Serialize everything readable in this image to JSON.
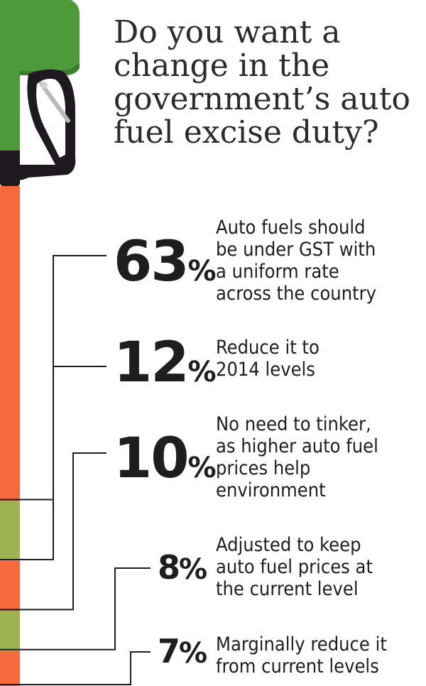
{
  "chart_data": {
    "type": "bar",
    "title_lines": [
      "Do you want a",
      "change in the",
      "government’s auto",
      "fuel excise duty?"
    ],
    "categories": [
      "Auto fuels should be under GST with a uniform rate across the country",
      "Reduce it to 2014 levels",
      "No need to tinker, as higher auto fuel prices help environment",
      "Adjusted to keep auto fuel prices at the current level",
      "Marginally reduce it from current levels"
    ],
    "values": [
      63,
      12,
      10,
      8,
      7
    ],
    "unit": "%",
    "items": [
      {
        "value": 63,
        "value_text": "63",
        "unit": "%",
        "label_lines": [
          "Auto fuels should",
          "be under GST with",
          "a uniform rate",
          "across the country"
        ],
        "color": "#f46a3c"
      },
      {
        "value": 12,
        "value_text": "12",
        "unit": "%",
        "label_lines": [
          "Reduce it to",
          "2014 levels"
        ],
        "color": "#9fb252"
      },
      {
        "value": 10,
        "value_text": "10",
        "unit": "%",
        "label_lines": [
          "No need to tinker,",
          "as higher auto fuel",
          "prices help",
          "environment"
        ],
        "color": "#f46a3c"
      },
      {
        "value": 8,
        "value_text": "8",
        "unit": "%",
        "label_lines": [
          "Adjusted to keep",
          "auto fuel prices at",
          "the current level"
        ],
        "color": "#9fb252"
      },
      {
        "value": 7,
        "value_text": "7",
        "unit": "%",
        "label_lines": [
          "Marginally reduce it",
          "from current levels"
        ],
        "color": "#f46a3c"
      }
    ],
    "colors": {
      "pump_green": "#4d9a3a",
      "pump_shade": "#3b7f2e",
      "nozzle": "#1e1a20",
      "connector": "#1e1e1e"
    }
  }
}
